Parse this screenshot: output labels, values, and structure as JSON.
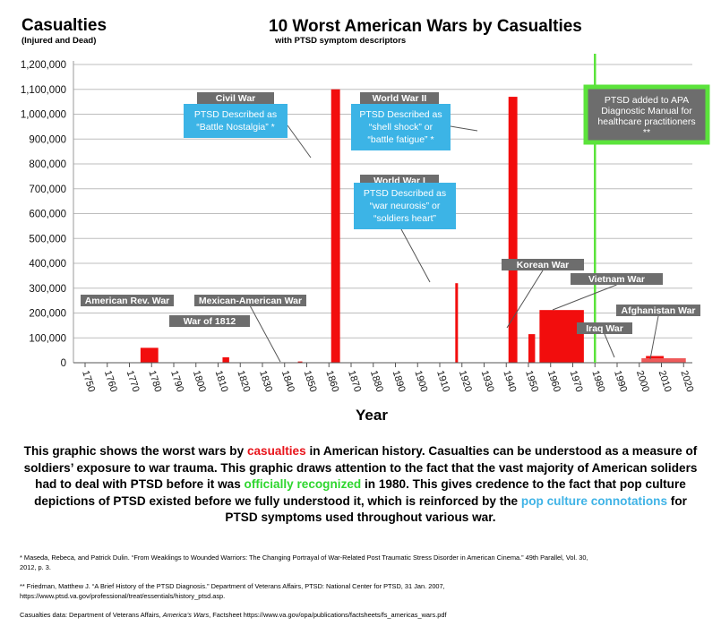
{
  "header": {
    "y_title": "Casualties",
    "y_subtitle": "(Injured and Dead)",
    "title": "10 Worst American Wars by Casualties",
    "subtitle": "with PTSD symptom descriptors"
  },
  "chart_data": {
    "type": "bar",
    "title": "10 Worst American Wars by Casualties",
    "subtitle": "with PTSD symptom descriptors",
    "xlabel": "Year",
    "ylabel": "Casualties",
    "ylabel_sub": "(Injured and Dead)",
    "xlim": [
      1750,
      2025
    ],
    "ylim": [
      0,
      1200000
    ],
    "x_ticks": [
      1750,
      1760,
      1770,
      1780,
      1790,
      1800,
      1810,
      1820,
      1830,
      1840,
      1850,
      1860,
      1870,
      1880,
      1890,
      1900,
      1910,
      1920,
      1930,
      1940,
      1950,
      1960,
      1970,
      1980,
      1990,
      2000,
      2010,
      2020
    ],
    "y_ticks": [
      0,
      100000,
      200000,
      300000,
      400000,
      500000,
      600000,
      700000,
      800000,
      900000,
      1000000,
      1100000,
      1200000
    ],
    "y_tick_labels": [
      "0",
      "100,000",
      "200,000",
      "300,000",
      "400,000",
      "500,000",
      "600,000",
      "700,000",
      "800,000",
      "900,000",
      "1,000,000",
      "1,100,000",
      "1,200,000"
    ],
    "grid": "horizontal",
    "wars": [
      {
        "name": "American Rev. War",
        "start": 1775,
        "end": 1783,
        "casualties": 60000
      },
      {
        "name": "War of 1812",
        "start": 1812,
        "end": 1815,
        "casualties": 22000
      },
      {
        "name": "Mexican-American War",
        "start": 1846,
        "end": 1848,
        "casualties": 5000
      },
      {
        "name": "Civil War",
        "start": 1861,
        "end": 1865,
        "casualties": 1100000
      },
      {
        "name": "World War I",
        "start": 1917,
        "end": 1918,
        "casualties": 320000
      },
      {
        "name": "World War II",
        "start": 1941,
        "end": 1945,
        "casualties": 1070000
      },
      {
        "name": "Korean War",
        "start": 1950,
        "end": 1953,
        "casualties": 115000
      },
      {
        "name": "Vietnam War",
        "start": 1955,
        "end": 1975,
        "casualties": 212000
      },
      {
        "name": "Iraq War",
        "start": 2003,
        "end": 2011,
        "casualties": 27000
      },
      {
        "name": "Afghanistan War",
        "start": 2001,
        "end": 2021,
        "casualties": 18000
      }
    ],
    "reference_line": {
      "x": 1980,
      "color": "#5be33b"
    },
    "callouts": [
      {
        "title": "Civil War",
        "lines": [
          "PTSD Described as",
          "“Battle Nostalgia” *"
        ]
      },
      {
        "title": "World War II",
        "lines": [
          "PTSD Described as",
          "“shell shock” or",
          "“battle fatigue” *"
        ]
      },
      {
        "title": "World War I",
        "lines": [
          "PTSD Described as",
          "“war neurosis” or",
          "“soldiers heart”"
        ]
      }
    ],
    "reference_note": [
      "PTSD added to APA",
      "Diagnostic Manual for",
      "healthcare practitioners",
      "**"
    ],
    "colors": {
      "bar": "#f20d0d",
      "bar_light": "#ee5a5a",
      "label_bg": "#6d6d6d",
      "callout_bg": "#3cb4e6",
      "green": "#5be33b"
    }
  },
  "description": {
    "p1": "This graphic shows the worst wars by ",
    "hl1": "casualties",
    "p2": " in American history. Casualties can be understood as a measure of soldiers’ exposure to war trauma. This graphic draws attention to the fact that the vast majority of American soliders had to deal with PTSD before it was ",
    "hl2": "officially recognized",
    "p3": " in 1980. This gives credence to the fact that pop culture depictions of PTSD existed before we fully understood it, which is reinforced by the ",
    "hl3": "pop culture connotations",
    "p4": " for PTSD symptoms used throughout various war."
  },
  "footnotes": {
    "f1": "* Maseda, Rebeca, and Patrick Dulin. “From Weaklings to Wounded Warriors: The Changing Portrayal of War-Related Post Traumatic Stress Disorder in American Cinema.” 49th Parallel, Vol. 30, 2012, p. 3.",
    "f2": "**  Friedman, Matthew  J. “A Brief History of the PTSD Diagnosis.” Department of Veterans Affairs, PTSD: National Center for PTSD, 31 Jan. 2007, https://www.ptsd.va.gov/professional/treat/essentials/history_ptsd.asp.",
    "f3a": "Casualties data: Department of Veterans Affairs, ",
    "f3b": "America’s Wars",
    "f3c": ", Factsheet https://www.va.gov/opa/publications/factsheets/fs_americas_wars.pdf"
  }
}
